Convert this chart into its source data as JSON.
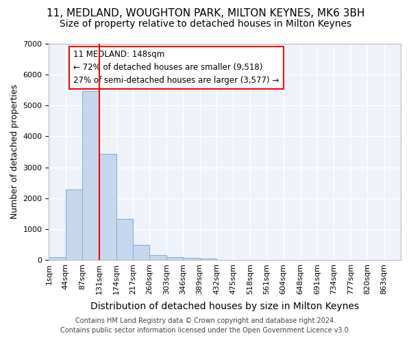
{
  "title": "11, MEDLAND, WOUGHTON PARK, MILTON KEYNES, MK6 3BH",
  "subtitle": "Size of property relative to detached houses in Milton Keynes",
  "xlabel": "Distribution of detached houses by size in Milton Keynes",
  "ylabel": "Number of detached properties",
  "footer_line1": "Contains HM Land Registry data © Crown copyright and database right 2024.",
  "footer_line2": "Contains public sector information licensed under the Open Government Licence v3.0.",
  "annotation_line1": "11 MEDLAND: 148sqm",
  "annotation_line2": "← 72% of detached houses are smaller (9,518)",
  "annotation_line3": "27% of semi-detached houses are larger (3,577) →",
  "bins": [
    1,
    44,
    87,
    131,
    174,
    217,
    260,
    303,
    346,
    389,
    432,
    475,
    518,
    561,
    604,
    648,
    691,
    734,
    777,
    820,
    863
  ],
  "bin_labels": [
    "1sqm",
    "44sqm",
    "87sqm",
    "131sqm",
    "174sqm",
    "217sqm",
    "260sqm",
    "303sqm",
    "346sqm",
    "389sqm",
    "432sqm",
    "475sqm",
    "518sqm",
    "561sqm",
    "604sqm",
    "648sqm",
    "691sqm",
    "734sqm",
    "777sqm",
    "820sqm",
    "863sqm"
  ],
  "values": [
    80,
    2280,
    5480,
    3440,
    1320,
    480,
    160,
    90,
    55,
    35,
    0,
    0,
    0,
    0,
    0,
    0,
    0,
    0,
    0,
    0
  ],
  "bar_color": "#c5d8ee",
  "bar_edge_color": "#7aadd4",
  "red_line_x": 131,
  "ylim": [
    0,
    7000
  ],
  "yticks": [
    0,
    1000,
    2000,
    3000,
    4000,
    5000,
    6000,
    7000
  ],
  "bg_color": "#eef2fa",
  "grid_color": "#ffffff",
  "title_fontsize": 11,
  "subtitle_fontsize": 10,
  "xlabel_fontsize": 10,
  "ylabel_fontsize": 9,
  "tick_fontsize": 8
}
